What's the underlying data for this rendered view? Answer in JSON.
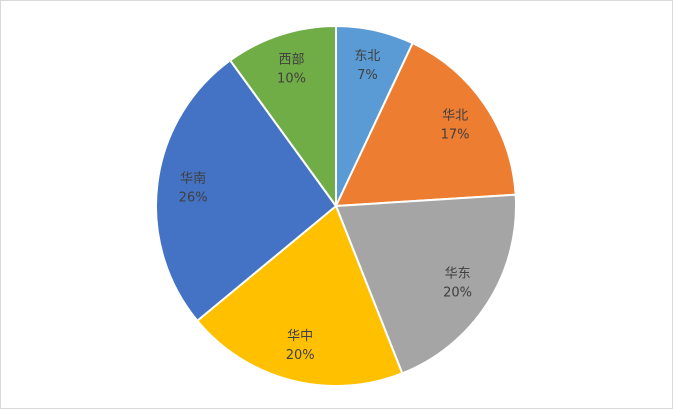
{
  "chart_data": {
    "type": "pie",
    "categories": [
      "东北",
      "华北",
      "华东",
      "华中",
      "华南",
      "西部"
    ],
    "values": [
      7,
      17,
      20,
      20,
      26,
      10
    ],
    "value_labels": [
      "7%",
      "17%",
      "20%",
      "20%",
      "26%",
      "10%"
    ],
    "colors": [
      "#5b9bd5",
      "#ed7d31",
      "#a5a5a5",
      "#ffc000",
      "#4472c4",
      "#70ad47"
    ]
  }
}
